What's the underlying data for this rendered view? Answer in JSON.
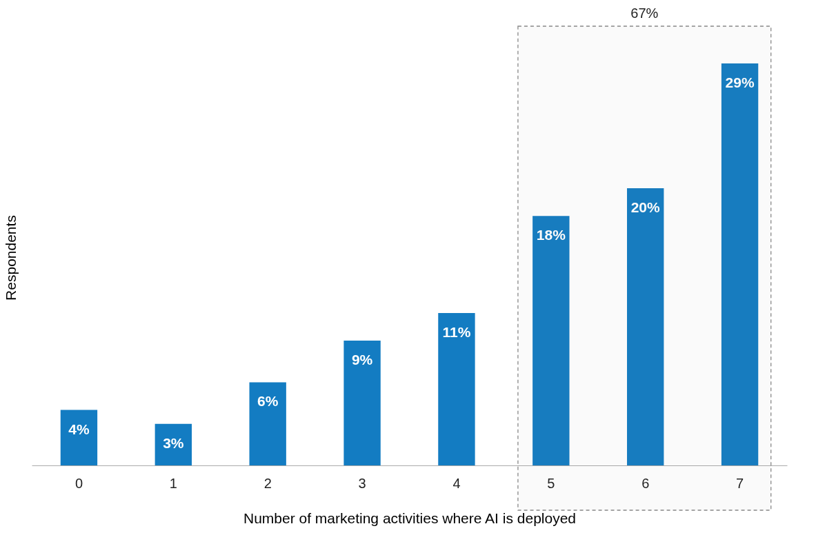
{
  "chart_data": {
    "type": "bar",
    "xlabel": "Number of marketing activities where AI is deployed",
    "ylabel": "Respondents",
    "categories": [
      "0",
      "1",
      "2",
      "3",
      "4",
      "5",
      "6",
      "7"
    ],
    "values": [
      4,
      3,
      6,
      9,
      11,
      18,
      20,
      29
    ],
    "color": "#137cc2",
    "value_labels": [
      "4%",
      "3%",
      "6%",
      "9%",
      "11%",
      "18%",
      "20%",
      "29%"
    ],
    "bands": [
      {
        "axis": "x",
        "from": "5",
        "to": "7",
        "label": "67%",
        "color": "#888888"
      }
    ],
    "grid": false,
    "tick_labels": "x"
  }
}
